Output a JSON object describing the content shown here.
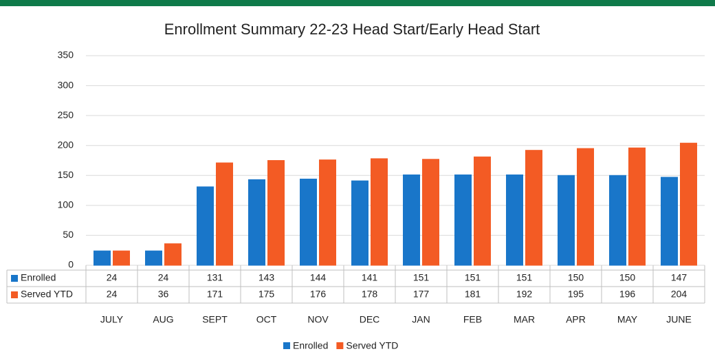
{
  "chart_data": {
    "type": "bar",
    "title": "Enrollment Summary 22-23 Head Start/Early Head Start",
    "categories": [
      "JULY",
      "AUG",
      "SEPT",
      "OCT",
      "NOV",
      "DEC",
      "JAN",
      "FEB",
      "MAR",
      "APR",
      "MAY",
      "JUNE"
    ],
    "series": [
      {
        "name": "Enrolled",
        "color": "#1976c9",
        "values": [
          24,
          24,
          131,
          143,
          144,
          141,
          151,
          151,
          151,
          150,
          150,
          147
        ]
      },
      {
        "name": "Served YTD",
        "color": "#f35b24",
        "values": [
          24,
          36,
          171,
          175,
          176,
          178,
          177,
          181,
          192,
          195,
          196,
          204
        ]
      }
    ],
    "ylim": [
      0,
      350
    ],
    "yticks": [
      0,
      50,
      100,
      150,
      200,
      250,
      300,
      350
    ],
    "grid": true,
    "legend": "bottom"
  }
}
